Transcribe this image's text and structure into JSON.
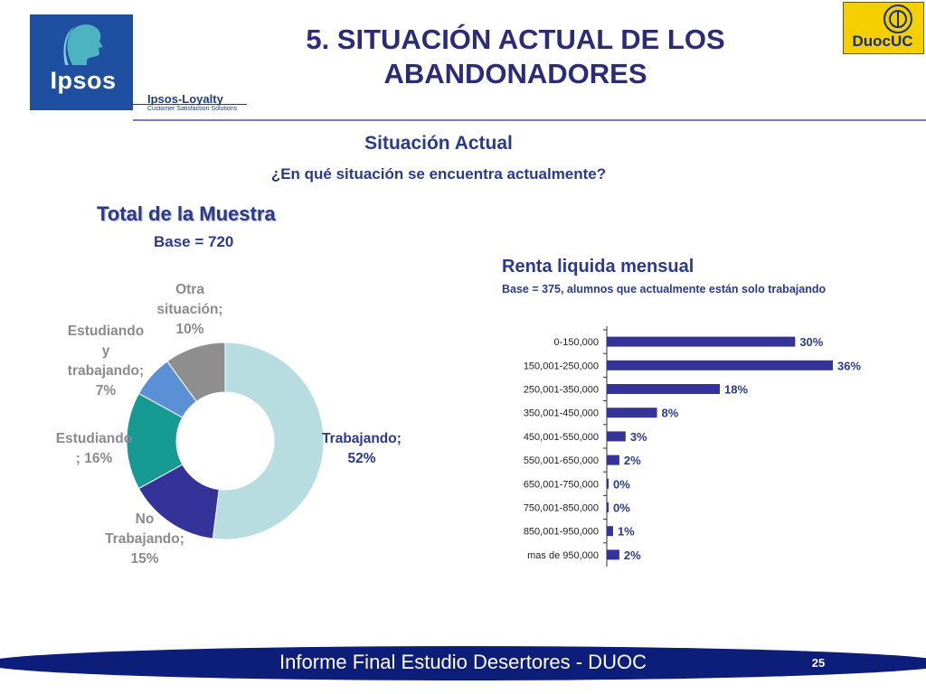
{
  "header": {
    "title": "5. SITUACIÓN ACTUAL DE LOS ABANDONADORES",
    "logo_left": "Ipsos",
    "logo_left_sub": "Ipsos-Loyalty",
    "logo_left_tagline": "Customer Satisfaction Solutions",
    "logo_right": "DuocUC"
  },
  "section": {
    "title": "Situación Actual",
    "question": "¿En qué situación se encuentra actualmente?"
  },
  "left_panel": {
    "title": "Total de la Muestra",
    "base": "Base = 720"
  },
  "right_panel": {
    "title": "Renta liquida mensual",
    "base": "Base = 375, alumnos que actualmente están solo trabajando"
  },
  "chart_data": [
    {
      "type": "pie",
      "title": "",
      "hole": true,
      "slices": [
        {
          "label": "Trabajando; 52%",
          "value": 52,
          "color": "#b8dde1"
        },
        {
          "label": "No Trabajando; 15%",
          "value": 15,
          "color": "#333399"
        },
        {
          "label": "Estudiando ; 16%",
          "value": 16,
          "color": "#189a94"
        },
        {
          "label": "Estudiando y trabajando; 7%",
          "value": 7,
          "color": "#5b90d6"
        },
        {
          "label": "Otra situación; 10%",
          "value": 10,
          "color": "#8e8e8e"
        }
      ]
    },
    {
      "type": "bar",
      "orientation": "horizontal",
      "title": "",
      "categories": [
        "0-150,000",
        "150,001-250,000",
        "250,001-350,000",
        "350,001-450,000",
        "450,001-550,000",
        "550,001-650,000",
        "650,001-750,000",
        "750,001-850,000",
        "850,001-950,000",
        "mas de 950,000"
      ],
      "values": [
        30,
        36,
        18,
        8,
        3,
        2,
        0,
        0,
        1,
        2
      ],
      "value_labels": [
        "30%",
        "36%",
        "18%",
        "8%",
        "3%",
        "2%",
        "0%",
        "0%",
        "1%",
        "2%"
      ],
      "xlim": [
        0,
        36
      ],
      "color": "#333399",
      "grid": false
    }
  ],
  "footer": {
    "text": "Informe Final Estudio Desertores - DUOC",
    "page_number": "25"
  }
}
